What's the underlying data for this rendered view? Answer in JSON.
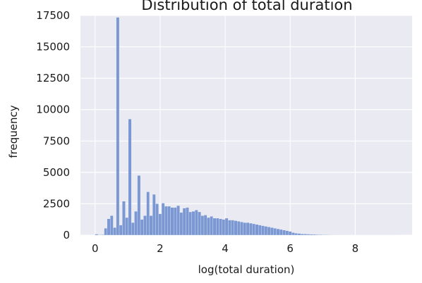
{
  "chart_data": {
    "type": "bar",
    "title": "Distribution of total duration",
    "xlabel": "log(total duration)",
    "ylabel": "frequency",
    "xlim": [
      -0.45,
      9.75
    ],
    "ylim": [
      0,
      17500
    ],
    "x_ticks": [
      0,
      2,
      4,
      6,
      8
    ],
    "y_ticks": [
      0,
      2500,
      5000,
      7500,
      10000,
      12500,
      15000,
      17500
    ],
    "x_tick_labels": [
      "0",
      "2",
      "4",
      "6",
      "8"
    ],
    "y_tick_labels": [
      "0",
      "2500",
      "5000",
      "7500",
      "10000",
      "12500",
      "15000",
      "17500"
    ],
    "grid": true,
    "background_color": "#eaeaf2",
    "bar_color": "#6f8fcf",
    "bin_width": 0.093,
    "bin_starts": [
      0.0,
      0.093,
      0.186,
      0.279,
      0.372,
      0.465,
      0.558,
      0.651,
      0.744,
      0.837,
      0.93,
      1.023,
      1.116,
      1.209,
      1.302,
      1.395,
      1.488,
      1.581,
      1.674,
      1.767,
      1.86,
      1.953,
      2.046,
      2.139,
      2.232,
      2.325,
      2.418,
      2.511,
      2.604,
      2.697,
      2.79,
      2.883,
      2.976,
      3.069,
      3.162,
      3.255,
      3.348,
      3.441,
      3.534,
      3.627,
      3.72,
      3.813,
      3.906,
      3.999,
      4.092,
      4.185,
      4.278,
      4.371,
      4.464,
      4.557,
      4.65,
      4.743,
      4.836,
      4.929,
      5.022,
      5.115,
      5.208,
      5.301,
      5.394,
      5.487,
      5.58,
      5.673,
      5.766,
      5.859,
      5.952,
      6.045,
      6.138,
      6.231,
      6.324,
      6.417,
      6.51,
      6.603,
      6.696,
      6.789,
      6.882,
      6.975,
      7.068,
      7.161,
      7.254,
      7.347,
      7.44,
      7.533,
      7.626,
      7.719,
      7.812,
      7.905,
      7.998,
      8.091,
      8.184,
      8.277,
      8.37,
      8.463,
      8.556,
      8.649,
      8.742,
      8.835,
      8.928,
      9.021,
      9.114,
      9.207
    ],
    "frequencies": [
      80,
      30,
      40,
      550,
      1300,
      1550,
      600,
      17350,
      800,
      2700,
      1400,
      9250,
      1000,
      1900,
      4750,
      1250,
      1550,
      3450,
      1550,
      3250,
      2500,
      1700,
      2550,
      2300,
      2300,
      2200,
      2200,
      2350,
      1800,
      2150,
      2200,
      1850,
      1900,
      2000,
      1850,
      1550,
      1600,
      1400,
      1500,
      1350,
      1350,
      1300,
      1250,
      1350,
      1200,
      1200,
      1150,
      1100,
      1050,
      1000,
      1000,
      950,
      900,
      850,
      800,
      750,
      700,
      650,
      600,
      550,
      500,
      450,
      400,
      350,
      300,
      200,
      150,
      130,
      100,
      90,
      80,
      70,
      60,
      50,
      40,
      30,
      30,
      25,
      20,
      20,
      15,
      15,
      15,
      10,
      10,
      10,
      10,
      10,
      10,
      10,
      10,
      10,
      10,
      10,
      10,
      10,
      10,
      10,
      10,
      10
    ]
  }
}
